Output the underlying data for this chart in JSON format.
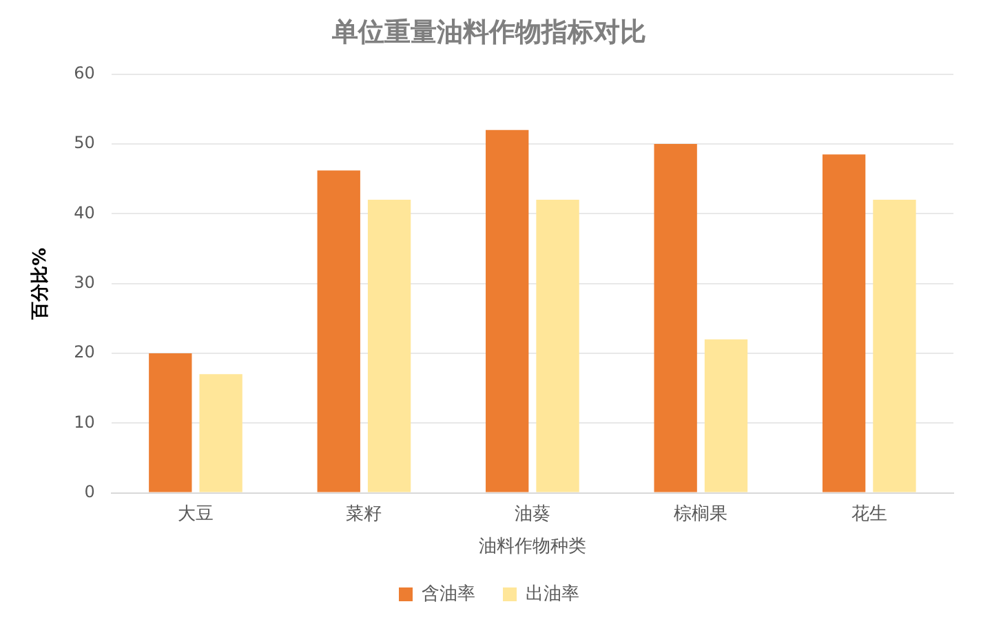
{
  "chart_data": {
    "type": "bar",
    "title": "单位重量油料作物指标对比",
    "xlabel": "油料作物种类",
    "ylabel": "百分比%",
    "categories": [
      "大豆",
      "菜籽",
      "油葵",
      "棕榈果",
      "花生"
    ],
    "series": [
      {
        "name": "含油率",
        "color": "#ed7d31",
        "values": [
          20,
          46.2,
          52,
          50,
          48.5
        ]
      },
      {
        "name": "出油率",
        "color": "#ffe699",
        "values": [
          17,
          42,
          42,
          22,
          42
        ]
      }
    ],
    "ylim": [
      0,
      60
    ],
    "yticks": [
      0,
      10,
      20,
      30,
      40,
      50,
      60
    ],
    "grid": "y",
    "legend": "bottom"
  }
}
